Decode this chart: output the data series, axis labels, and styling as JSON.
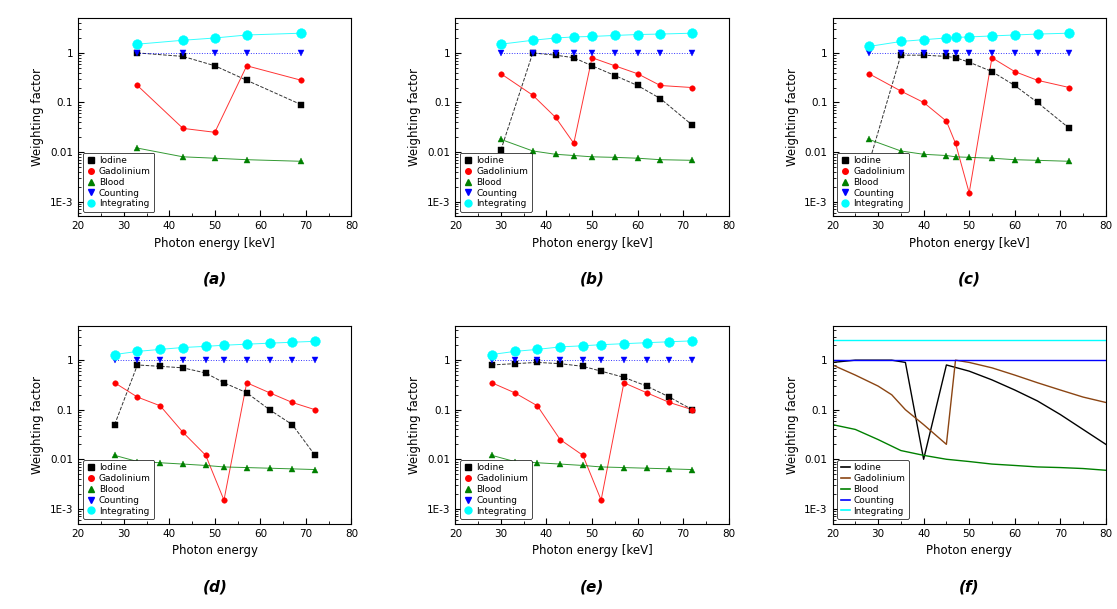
{
  "panels": {
    "a": {
      "label": "(a)",
      "xlabel": "Photon energy [keV]",
      "ylabel": "Weighting factor",
      "xlim": [
        20,
        80
      ],
      "ylim": [
        0.0005,
        5
      ],
      "iodine": {
        "x": [
          33,
          43,
          50,
          57,
          69
        ],
        "y": [
          1.0,
          0.85,
          0.55,
          0.28,
          0.09
        ]
      },
      "gadolinium": {
        "x": [
          33,
          43,
          50,
          57,
          69
        ],
        "y": [
          0.22,
          0.03,
          0.025,
          0.55,
          0.28
        ]
      },
      "blood": {
        "x": [
          33,
          43,
          50,
          57,
          69
        ],
        "y": [
          0.012,
          0.008,
          0.0075,
          0.007,
          0.0065
        ]
      },
      "counting": {
        "x": [
          33,
          43,
          50,
          57,
          69
        ],
        "y": [
          1.0,
          1.0,
          1.0,
          1.0,
          1.0
        ]
      },
      "integrating": {
        "x": [
          33,
          43,
          50,
          57,
          69
        ],
        "y": [
          1.5,
          1.8,
          2.0,
          2.3,
          2.5
        ]
      }
    },
    "b": {
      "label": "(b)",
      "xlabel": "Photon energy [keV]",
      "ylabel": "Weighting factor",
      "xlim": [
        20,
        80
      ],
      "ylim": [
        0.0005,
        5
      ],
      "iodine": {
        "x": [
          30,
          37,
          42,
          46,
          50,
          55,
          60,
          65,
          72
        ],
        "y": [
          0.011,
          1.0,
          0.9,
          0.8,
          0.55,
          0.35,
          0.22,
          0.12,
          0.035
        ]
      },
      "gadolinium": {
        "x": [
          30,
          37,
          42,
          46,
          50,
          55,
          60,
          65,
          72
        ],
        "y": [
          0.38,
          0.14,
          0.05,
          0.015,
          0.8,
          0.55,
          0.38,
          0.22,
          0.2
        ]
      },
      "blood": {
        "x": [
          30,
          37,
          42,
          46,
          50,
          55,
          60,
          65,
          72
        ],
        "y": [
          0.018,
          0.0105,
          0.009,
          0.0085,
          0.008,
          0.0078,
          0.0075,
          0.007,
          0.0068
        ]
      },
      "counting": {
        "x": [
          30,
          37,
          42,
          46,
          50,
          55,
          60,
          65,
          72
        ],
        "y": [
          1.0,
          1.0,
          1.0,
          1.0,
          1.0,
          1.0,
          1.0,
          1.0,
          1.0
        ]
      },
      "integrating": {
        "x": [
          30,
          37,
          42,
          46,
          50,
          55,
          60,
          65,
          72
        ],
        "y": [
          1.5,
          1.8,
          2.0,
          2.1,
          2.15,
          2.25,
          2.35,
          2.4,
          2.5
        ]
      }
    },
    "c": {
      "label": "(c)",
      "xlabel": "Photon energy [keV]",
      "ylabel": "Weighting factor",
      "xlim": [
        20,
        80
      ],
      "ylim": [
        0.0005,
        5
      ],
      "iodine": {
        "x": [
          28,
          35,
          40,
          45,
          47,
          50,
          55,
          60,
          65,
          72
        ],
        "y": [
          0.006,
          0.9,
          0.9,
          0.85,
          0.8,
          0.65,
          0.42,
          0.22,
          0.1,
          0.03
        ]
      },
      "gadolinium": {
        "x": [
          28,
          35,
          40,
          45,
          47,
          50,
          55,
          60,
          65,
          72
        ],
        "y": [
          0.38,
          0.17,
          0.1,
          0.042,
          0.015,
          0.0015,
          0.8,
          0.42,
          0.28,
          0.2
        ]
      },
      "blood": {
        "x": [
          28,
          35,
          40,
          45,
          47,
          50,
          55,
          60,
          65,
          72
        ],
        "y": [
          0.018,
          0.0105,
          0.009,
          0.0085,
          0.008,
          0.0078,
          0.0075,
          0.007,
          0.0068,
          0.0065
        ]
      },
      "counting": {
        "x": [
          28,
          35,
          40,
          45,
          47,
          50,
          55,
          60,
          65,
          72
        ],
        "y": [
          1.0,
          1.0,
          1.0,
          1.0,
          1.0,
          1.0,
          1.0,
          1.0,
          1.0,
          1.0
        ]
      },
      "integrating": {
        "x": [
          28,
          35,
          40,
          45,
          47,
          50,
          55,
          60,
          65,
          72
        ],
        "y": [
          1.35,
          1.7,
          1.85,
          2.0,
          2.05,
          2.1,
          2.2,
          2.3,
          2.4,
          2.5
        ]
      }
    },
    "d": {
      "label": "(d)",
      "xlabel": "Photon energy",
      "ylabel": "Weighting factor",
      "xlim": [
        20,
        80
      ],
      "ylim": [
        0.0005,
        5
      ],
      "iodine": {
        "x": [
          28,
          33,
          38,
          43,
          48,
          52,
          57,
          62,
          67,
          72
        ],
        "y": [
          0.05,
          0.8,
          0.75,
          0.7,
          0.55,
          0.35,
          0.22,
          0.1,
          0.05,
          0.012
        ]
      },
      "gadolinium": {
        "x": [
          28,
          33,
          38,
          43,
          48,
          52,
          57,
          62,
          67,
          72
        ],
        "y": [
          0.35,
          0.18,
          0.12,
          0.035,
          0.012,
          0.0015,
          0.35,
          0.22,
          0.14,
          0.1
        ]
      },
      "blood": {
        "x": [
          28,
          33,
          38,
          43,
          48,
          52,
          57,
          62,
          67,
          72
        ],
        "y": [
          0.012,
          0.009,
          0.0085,
          0.008,
          0.0075,
          0.007,
          0.0068,
          0.0066,
          0.0064,
          0.0062
        ]
      },
      "counting": {
        "x": [
          28,
          33,
          38,
          43,
          48,
          52,
          57,
          62,
          67,
          72
        ],
        "y": [
          1.0,
          1.0,
          1.0,
          1.0,
          1.0,
          1.0,
          1.0,
          1.0,
          1.0,
          1.0
        ]
      },
      "integrating": {
        "x": [
          28,
          33,
          38,
          43,
          48,
          52,
          57,
          62,
          67,
          72
        ],
        "y": [
          1.3,
          1.5,
          1.65,
          1.8,
          1.9,
          2.0,
          2.1,
          2.2,
          2.3,
          2.4
        ]
      }
    },
    "e": {
      "label": "(e)",
      "xlabel": "Photon energy [keV]",
      "ylabel": "Weighting factor",
      "xlim": [
        20,
        80
      ],
      "ylim": [
        0.0005,
        5
      ],
      "iodine": {
        "x": [
          28,
          33,
          38,
          43,
          48,
          52,
          57,
          62,
          67,
          72
        ],
        "y": [
          0.8,
          0.85,
          0.9,
          0.85,
          0.75,
          0.6,
          0.45,
          0.3,
          0.18,
          0.1
        ]
      },
      "gadolinium": {
        "x": [
          28,
          33,
          38,
          43,
          48,
          52,
          57,
          62,
          67,
          72
        ],
        "y": [
          0.35,
          0.22,
          0.12,
          0.025,
          0.012,
          0.0015,
          0.35,
          0.22,
          0.14,
          0.1
        ]
      },
      "blood": {
        "x": [
          28,
          33,
          38,
          43,
          48,
          52,
          57,
          62,
          67,
          72
        ],
        "y": [
          0.012,
          0.009,
          0.0085,
          0.008,
          0.0075,
          0.007,
          0.0068,
          0.0066,
          0.0064,
          0.0062
        ]
      },
      "counting": {
        "x": [
          28,
          33,
          38,
          43,
          48,
          52,
          57,
          62,
          67,
          72
        ],
        "y": [
          1.0,
          1.0,
          1.0,
          1.0,
          1.0,
          1.0,
          1.0,
          1.0,
          1.0,
          1.0
        ]
      },
      "integrating": {
        "x": [
          28,
          33,
          38,
          43,
          48,
          52,
          57,
          62,
          67,
          72
        ],
        "y": [
          1.3,
          1.5,
          1.65,
          1.85,
          1.95,
          2.05,
          2.15,
          2.25,
          2.35,
          2.45
        ]
      }
    },
    "f": {
      "label": "(f)",
      "xlabel": "Photon energy",
      "ylabel": "Weighting factor",
      "xlim": [
        20,
        80
      ],
      "ylim": [
        0.0005,
        5
      ],
      "iodine": {
        "x": [
          20,
          25,
          30,
          33,
          36,
          40,
          45,
          50,
          55,
          60,
          65,
          70,
          75,
          80
        ],
        "y": [
          0.9,
          1.0,
          1.0,
          1.0,
          0.9,
          0.01,
          0.8,
          0.6,
          0.4,
          0.25,
          0.15,
          0.08,
          0.04,
          0.02
        ]
      },
      "gadolinium": {
        "x": [
          20,
          25,
          30,
          33,
          36,
          40,
          45,
          47,
          50,
          55,
          60,
          65,
          70,
          75,
          80
        ],
        "y": [
          0.8,
          0.5,
          0.3,
          0.2,
          0.1,
          0.05,
          0.02,
          1.0,
          0.9,
          0.7,
          0.5,
          0.35,
          0.25,
          0.18,
          0.14
        ]
      },
      "blood": {
        "x": [
          20,
          25,
          30,
          35,
          40,
          45,
          50,
          55,
          60,
          65,
          70,
          75,
          80
        ],
        "y": [
          0.05,
          0.04,
          0.025,
          0.015,
          0.012,
          0.01,
          0.009,
          0.008,
          0.0075,
          0.007,
          0.0068,
          0.0065,
          0.006
        ]
      },
      "counting": {
        "x": [
          20,
          80
        ],
        "y": [
          1.0,
          1.0
        ]
      },
      "integrating": {
        "x": [
          20,
          80
        ],
        "y": [
          2.5,
          2.5
        ]
      }
    }
  },
  "series_colors": {
    "iodine": "black",
    "gadolinium": "red",
    "blood": "green",
    "counting": "blue",
    "integrating": "cyan"
  },
  "series_colors_f": {
    "iodine": "black",
    "gadolinium": "#8B4513",
    "blood": "green",
    "counting": "blue",
    "integrating": "cyan"
  }
}
